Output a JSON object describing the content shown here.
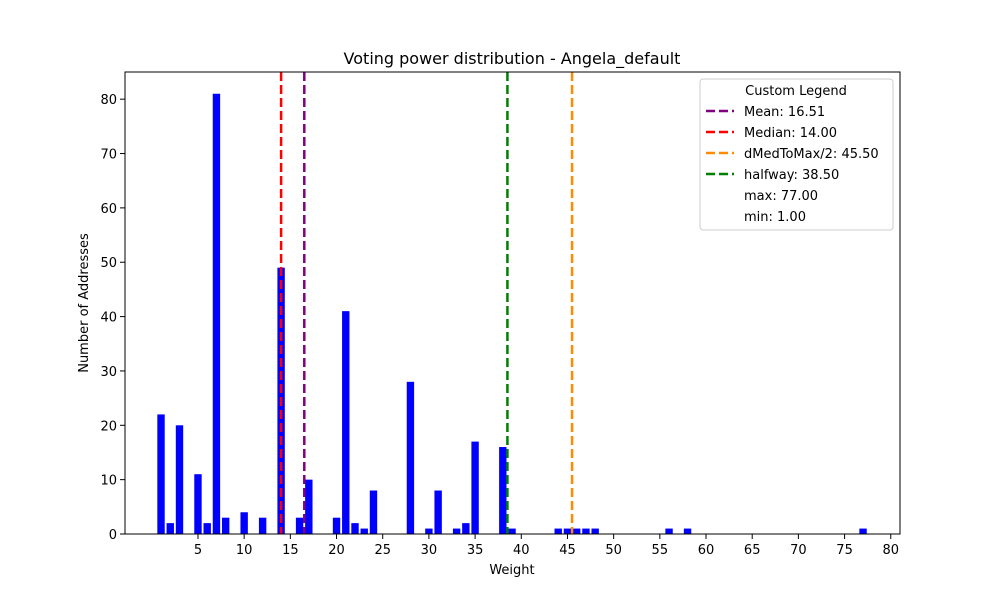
{
  "chart_data": {
    "type": "bar",
    "title": "Voting power distribution - Angela_default",
    "xlabel": "Weight",
    "ylabel": "Number of Addresses",
    "xlim": [
      -2.9,
      81.0
    ],
    "ylim": [
      0,
      85
    ],
    "xticks": [
      5,
      10,
      15,
      20,
      25,
      30,
      35,
      40,
      45,
      50,
      55,
      60,
      65,
      70,
      75,
      80
    ],
    "yticks": [
      0,
      10,
      20,
      30,
      40,
      50,
      60,
      70,
      80
    ],
    "bar_color": "#0000ff",
    "bars": [
      {
        "x": 1,
        "y": 22
      },
      {
        "x": 2,
        "y": 2
      },
      {
        "x": 3,
        "y": 20
      },
      {
        "x": 5,
        "y": 11
      },
      {
        "x": 6,
        "y": 2
      },
      {
        "x": 7,
        "y": 81
      },
      {
        "x": 8,
        "y": 3
      },
      {
        "x": 10,
        "y": 4
      },
      {
        "x": 12,
        "y": 3
      },
      {
        "x": 14,
        "y": 49
      },
      {
        "x": 16,
        "y": 3
      },
      {
        "x": 17,
        "y": 10
      },
      {
        "x": 20,
        "y": 3
      },
      {
        "x": 21,
        "y": 41
      },
      {
        "x": 22,
        "y": 2
      },
      {
        "x": 23,
        "y": 1
      },
      {
        "x": 24,
        "y": 8
      },
      {
        "x": 28,
        "y": 28
      },
      {
        "x": 30,
        "y": 1
      },
      {
        "x": 31,
        "y": 8
      },
      {
        "x": 33,
        "y": 1
      },
      {
        "x": 34,
        "y": 2
      },
      {
        "x": 35,
        "y": 17
      },
      {
        "x": 38,
        "y": 16
      },
      {
        "x": 39,
        "y": 1
      },
      {
        "x": 44,
        "y": 1
      },
      {
        "x": 45,
        "y": 1
      },
      {
        "x": 46,
        "y": 1
      },
      {
        "x": 47,
        "y": 1
      },
      {
        "x": 48,
        "y": 1
      },
      {
        "x": 56,
        "y": 1
      },
      {
        "x": 58,
        "y": 1
      },
      {
        "x": 77,
        "y": 1
      }
    ],
    "vlines": [
      {
        "label": "Mean: 16.51",
        "x": 16.51,
        "color": "#800080"
      },
      {
        "label": "Median: 14.00",
        "x": 14.0,
        "color": "#ff0000"
      },
      {
        "label": "dMedToMax/2: 45.50",
        "x": 45.5,
        "color": "#ff8c00"
      },
      {
        "label": "halfway: 38.50",
        "x": 38.5,
        "color": "#008000"
      }
    ],
    "legend": {
      "title": "Custom Legend",
      "position": "top-right",
      "entries": [
        {
          "label": "Mean: 16.51",
          "color": "#800080"
        },
        {
          "label": "Median: 14.00",
          "color": "#ff0000"
        },
        {
          "label": "dMedToMax/2: 45.50",
          "color": "#ff8c00"
        },
        {
          "label": "halfway: 38.50",
          "color": "#008000"
        },
        {
          "label": "max: 77.00",
          "color": null
        },
        {
          "label": "min: 1.00",
          "color": null
        }
      ]
    },
    "grid": false
  }
}
